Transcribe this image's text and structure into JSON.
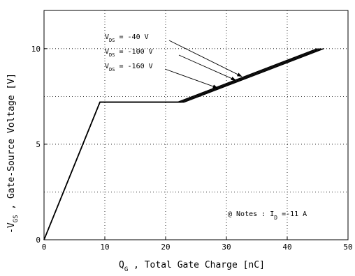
{
  "chart_data": {
    "type": "line",
    "title": "",
    "xlabel": {
      "main": "Q",
      "sub": "G",
      "rest": " , Total Gate Charge  [nC]"
    },
    "ylabel": {
      "pre": "-V",
      "sub": "GS",
      "rest": " ,  Gate-Source Voltage  [V]"
    },
    "xlim": [
      0,
      50
    ],
    "ylim": [
      0,
      12
    ],
    "x_ticks": [
      0,
      10,
      20,
      30,
      40,
      50
    ],
    "y_ticks": [
      0,
      5,
      10
    ],
    "grid": true,
    "series": [
      {
        "name": "V_DS = -40 V",
        "points": [
          [
            0,
            0
          ],
          [
            9.2,
            7.2
          ],
          [
            22.0,
            7.2
          ],
          [
            45.0,
            10
          ]
        ]
      },
      {
        "name": "V_DS = -100 V",
        "points": [
          [
            0,
            0
          ],
          [
            9.2,
            7.2
          ],
          [
            22.5,
            7.2
          ],
          [
            45.5,
            10
          ]
        ]
      },
      {
        "name": "V_DS = -160 V",
        "points": [
          [
            0,
            0
          ],
          [
            9.2,
            7.2
          ],
          [
            23.0,
            7.2
          ],
          [
            46.0,
            10
          ]
        ]
      }
    ],
    "legend_labels": [
      {
        "pre": "V",
        "sub": "DS",
        "post": " = -40 V",
        "target": [
          32.5,
          8.55
        ]
      },
      {
        "pre": "V",
        "sub": "DS",
        "post": " = -100 V",
        "target": [
          31.5,
          8.35
        ]
      },
      {
        "pre": "V",
        "sub": "DS",
        "post": " = -160 V",
        "target": [
          28.5,
          7.95
        ]
      }
    ],
    "note": {
      "pre": "@ Notes : I",
      "sub": "D",
      "post": " =-11 A"
    }
  }
}
